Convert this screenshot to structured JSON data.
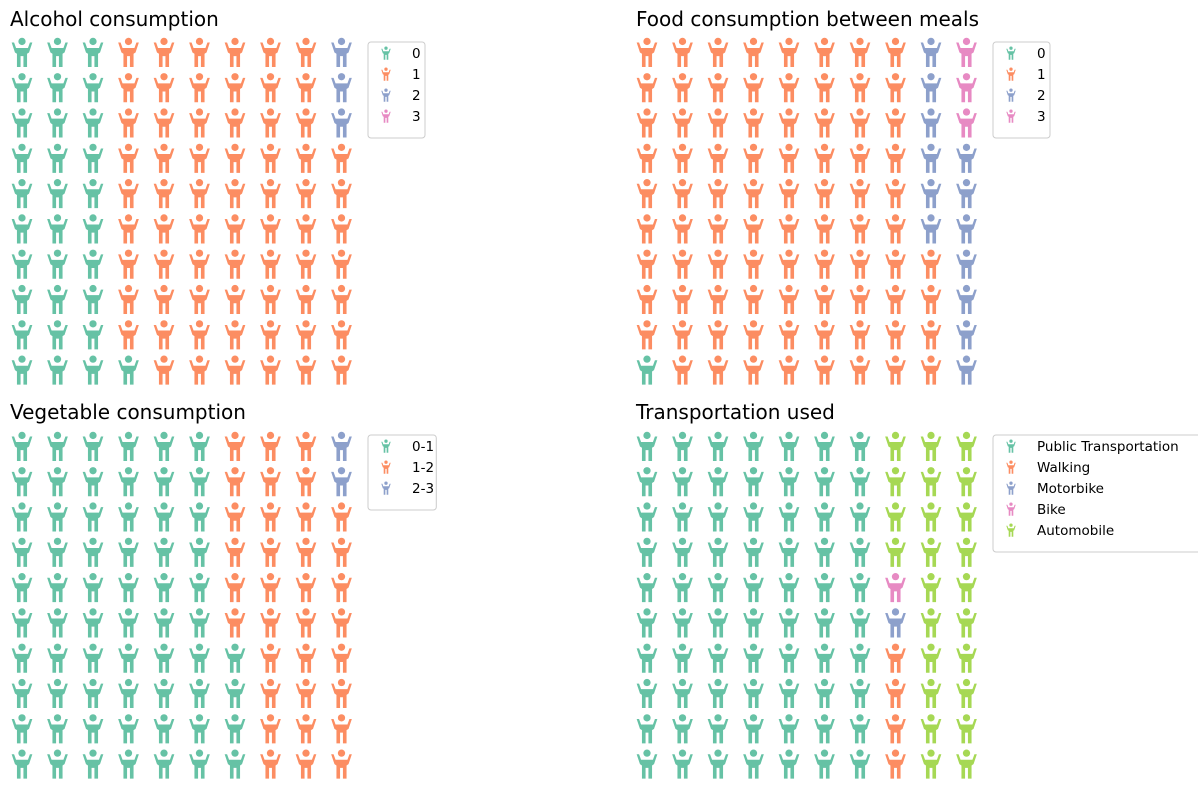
{
  "chart_data": [
    {
      "type": "waffle",
      "title": "Alcohol consumption",
      "icon": "person-arms-raised-icon",
      "series": [
        {
          "name": "0",
          "value": 31,
          "color": "#66c2a5"
        },
        {
          "name": "1",
          "value": 66,
          "color": "#fc8d62"
        },
        {
          "name": "2",
          "value": 3,
          "color": "#8da0cb"
        },
        {
          "name": "3",
          "value": 0,
          "color": "#e78ac3"
        }
      ]
    },
    {
      "type": "waffle",
      "title": "Food consumption between meals",
      "icon": "person-arms-raised-icon",
      "series": [
        {
          "name": "0",
          "value": 1,
          "color": "#66c2a5"
        },
        {
          "name": "1",
          "value": 83,
          "color": "#fc8d62"
        },
        {
          "name": "2",
          "value": 13,
          "color": "#8da0cb"
        },
        {
          "name": "3",
          "value": 3,
          "color": "#e78ac3"
        }
      ]
    },
    {
      "type": "waffle",
      "title": "Vegetable consumption",
      "icon": "person-arms-raised-icon",
      "series": [
        {
          "name": "0-1",
          "value": 64,
          "color": "#66c2a5"
        },
        {
          "name": "1-2",
          "value": 34,
          "color": "#fc8d62"
        },
        {
          "name": "2-3",
          "value": 2,
          "color": "#8da0cb"
        }
      ]
    },
    {
      "type": "waffle",
      "title": "Transportation used",
      "icon": "person-arms-raised-icon",
      "series": [
        {
          "name": "Public Transportation",
          "value": 70,
          "color": "#66c2a5"
        },
        {
          "name": "Walking",
          "value": 4,
          "color": "#fc8d62"
        },
        {
          "name": "Motorbike",
          "value": 1,
          "color": "#8da0cb"
        },
        {
          "name": "Bike",
          "value": 1,
          "color": "#e78ac3"
        },
        {
          "name": "Automobile",
          "value": 24,
          "color": "#a6d854"
        }
      ]
    }
  ]
}
